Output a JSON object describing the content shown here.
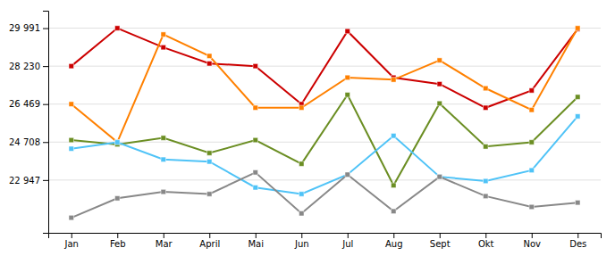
{
  "chart_data": {
    "type": "line",
    "categories": [
      "Jan",
      "Feb",
      "Mar",
      "April",
      "Mai",
      "Jun",
      "Jul",
      "Aug",
      "Sept",
      "Okt",
      "Nov",
      "Des"
    ],
    "series": [
      {
        "color": "#cc0000",
        "values": [
          28230,
          29991,
          29100,
          28350,
          28230,
          26469,
          29850,
          27700,
          27400,
          26300,
          27100,
          29950
        ]
      },
      {
        "color": "#ff8000",
        "values": [
          26469,
          24708,
          29700,
          28700,
          26300,
          26300,
          27700,
          27600,
          28500,
          27200,
          26200,
          29991
        ]
      },
      {
        "color": "#6b8e23",
        "values": [
          24800,
          24600,
          24900,
          24200,
          24800,
          23700,
          26900,
          22700,
          26500,
          24500,
          24700,
          26800
        ]
      },
      {
        "color": "#4fc3f7",
        "values": [
          24400,
          24700,
          23900,
          23800,
          22600,
          22300,
          23200,
          25000,
          23100,
          22900,
          23400,
          25900
        ]
      },
      {
        "color": "#888888",
        "values": [
          21200,
          22100,
          22400,
          22300,
          23300,
          21400,
          23200,
          21500,
          23100,
          22200,
          21700,
          21900
        ]
      }
    ],
    "ylim": [
      20500,
      30800
    ],
    "yticks": [
      {
        "value": 22947,
        "label": "22 947"
      },
      {
        "value": 24708,
        "label": "24 708"
      },
      {
        "value": 26469,
        "label": "26 469"
      },
      {
        "value": 28230,
        "label": "28 230"
      },
      {
        "value": 29991,
        "label": "29 991"
      }
    ],
    "grid": true,
    "marker": "square"
  }
}
